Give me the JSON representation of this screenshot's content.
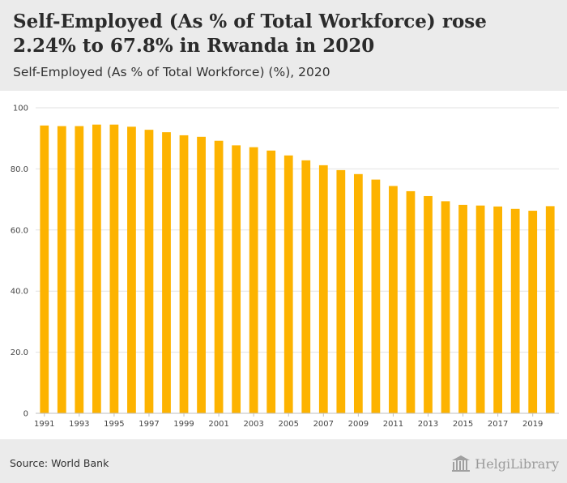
{
  "header": {
    "title": "Self-Employed (As % of Total Workforce) rose 2.24% to 67.8% in Rwanda in 2020",
    "subtitle": "Self-Employed (As % of Total Workforce) (%), 2020"
  },
  "footer": {
    "source": "Source: World Bank",
    "brand": "HelgiLibrary"
  },
  "colors": {
    "bar": "#FDB300",
    "grid": "#e2e2e2",
    "header_bg": "#ebebeb"
  },
  "chart_data": {
    "type": "bar",
    "categories": [
      "1991",
      "1992",
      "1993",
      "1994",
      "1995",
      "1996",
      "1997",
      "1998",
      "1999",
      "2000",
      "2001",
      "2002",
      "2003",
      "2004",
      "2005",
      "2006",
      "2007",
      "2008",
      "2009",
      "2010",
      "2011",
      "2012",
      "2013",
      "2014",
      "2015",
      "2016",
      "2017",
      "2018",
      "2019",
      "2020"
    ],
    "x_tick_labels": [
      "1991",
      "1993",
      "1995",
      "1997",
      "1999",
      "2001",
      "2003",
      "2005",
      "2007",
      "2009",
      "2011",
      "2013",
      "2015",
      "2017",
      "2019"
    ],
    "values": [
      94.2,
      94.0,
      94.0,
      94.5,
      94.5,
      93.8,
      92.8,
      92.0,
      91.0,
      90.5,
      89.2,
      87.7,
      87.1,
      86.0,
      84.4,
      82.8,
      81.2,
      79.6,
      78.3,
      76.5,
      74.4,
      72.7,
      71.1,
      69.4,
      68.2,
      68.0,
      67.7,
      66.9,
      66.3,
      67.8
    ],
    "y_ticks": [
      "0",
      "20.0",
      "40.0",
      "60.0",
      "80.0",
      "100"
    ],
    "ylim": [
      0,
      100
    ],
    "grid": true,
    "title": "",
    "xlabel": "",
    "ylabel": ""
  }
}
